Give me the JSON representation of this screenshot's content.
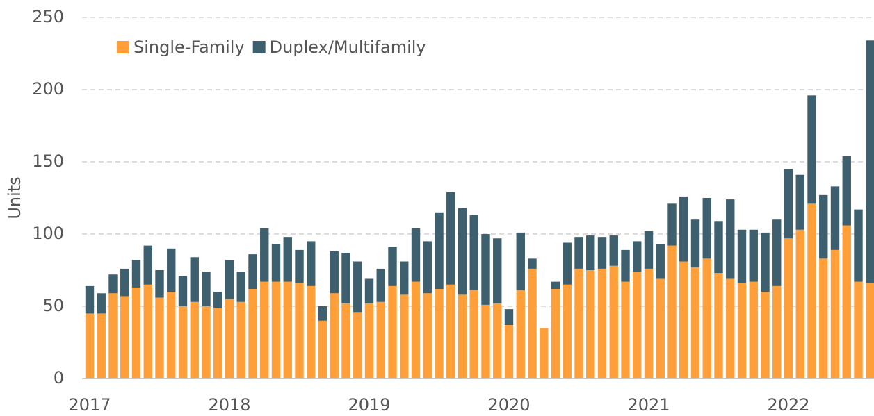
{
  "chart_data": {
    "type": "bar",
    "stacked": true,
    "y_label": "Units",
    "categories": [
      "2017",
      null,
      null,
      null,
      null,
      null,
      null,
      null,
      null,
      null,
      null,
      null,
      "2018",
      null,
      null,
      null,
      null,
      null,
      null,
      null,
      null,
      null,
      null,
      null,
      "2019",
      null,
      null,
      null,
      null,
      null,
      null,
      null,
      null,
      null,
      null,
      null,
      "2020",
      null,
      null,
      null,
      null,
      null,
      null,
      null,
      null,
      null,
      null,
      null,
      "2021",
      null,
      null,
      null,
      null,
      null,
      null,
      null,
      null,
      null,
      null,
      null,
      "2022",
      null,
      null,
      null,
      null,
      null,
      null,
      null
    ],
    "series": [
      {
        "name": "Single-Family",
        "color": "#ff9f3a",
        "values": [
          45,
          45,
          59,
          57,
          63,
          65,
          56,
          60,
          50,
          53,
          50,
          49,
          55,
          53,
          62,
          67,
          67,
          67,
          66,
          64,
          40,
          59,
          52,
          46,
          52,
          53,
          64,
          58,
          67,
          59,
          62,
          65,
          58,
          61,
          51,
          52,
          37,
          61,
          76,
          35,
          62,
          65,
          76,
          75,
          76,
          78,
          67,
          74,
          76,
          69,
          92,
          81,
          77,
          83,
          73,
          69,
          66,
          67,
          60,
          64,
          97,
          103,
          121,
          83,
          89,
          106,
          67,
          66
        ]
      },
      {
        "name": "Duplex/Multifamily",
        "color": "#3e5f6e",
        "values": [
          19,
          14,
          13,
          19,
          19,
          27,
          19,
          30,
          21,
          31,
          24,
          11,
          27,
          21,
          24,
          37,
          26,
          31,
          23,
          31,
          10,
          29,
          35,
          35,
          17,
          23,
          27,
          23,
          37,
          36,
          53,
          64,
          60,
          52,
          49,
          45,
          11,
          40,
          7,
          0,
          5,
          29,
          22,
          24,
          22,
          21,
          22,
          21,
          26,
          24,
          29,
          45,
          33,
          42,
          36,
          55,
          37,
          36,
          41,
          46,
          48,
          38,
          75,
          44,
          44,
          48,
          50,
          168
        ]
      }
    ],
    "ylim": [
      0,
      250
    ],
    "yticks": [
      0,
      50,
      100,
      150,
      200,
      250
    ],
    "grid": true,
    "legend": "top-left"
  }
}
